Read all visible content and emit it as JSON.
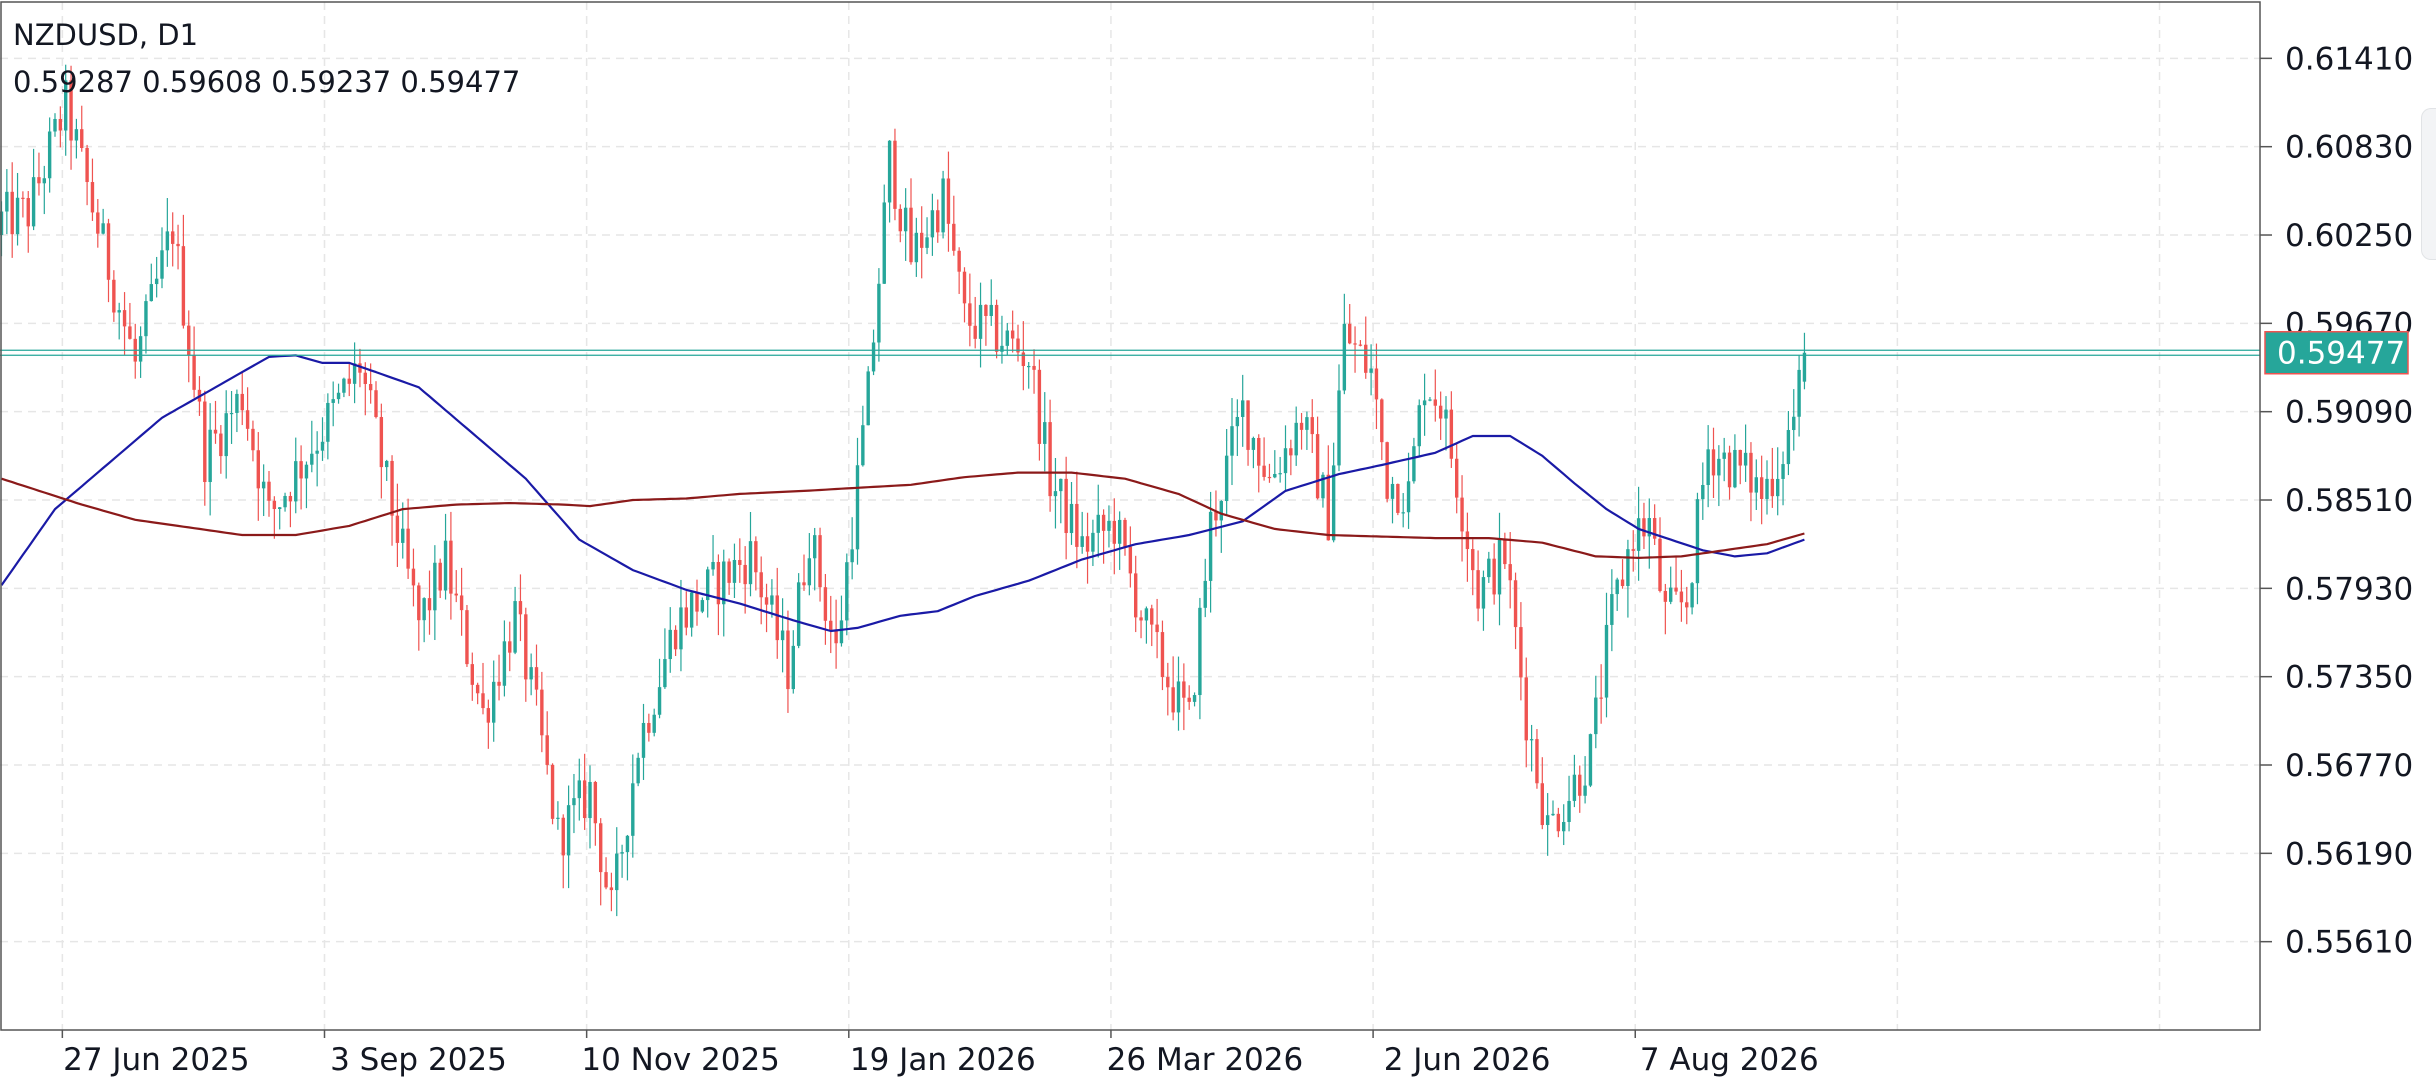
{
  "symbol_label": "NZDUSD, D1",
  "ohlc_label": "0.59287 0.59608 0.59237 0.59477",
  "colors": {
    "bull": "#26a69a",
    "bear": "#ef5350",
    "ma_fast": "#1a1aa6",
    "ma_slow": "#8b1a1a",
    "grid": "#e6e6e6",
    "price_tag": "#26a69a",
    "price_tag_border": "#ef5350",
    "text": "#131722"
  },
  "chart_data": {
    "type": "candlestick",
    "symbol": "NZDUSD",
    "timeframe": "D1",
    "y_ticks": [
      "0.61410",
      "0.60830",
      "0.60250",
      "0.59670",
      "0.59090",
      "0.58510",
      "0.57930",
      "0.57350",
      "0.56770",
      "0.56190",
      "0.55610"
    ],
    "ylim": [
      0.5503,
      0.6178
    ],
    "x_ticks": [
      {
        "label": "27 Jun 2025",
        "index": 11
      },
      {
        "label": "3 Sep 2025",
        "index": 60
      },
      {
        "label": "10 Nov 2025",
        "index": 109
      },
      {
        "label": "19 Jan 2026",
        "index": 158
      },
      {
        "label": "26 Mar 2026",
        "index": 207
      },
      {
        "label": "2 Jun 2026",
        "index": 256
      },
      {
        "label": "7 Aug 2026",
        "index": 305
      }
    ],
    "close_anchors": [
      [
        0,
        0.6035
      ],
      [
        5,
        0.604
      ],
      [
        12,
        0.611
      ],
      [
        18,
        0.603
      ],
      [
        25,
        0.594
      ],
      [
        32,
        0.603
      ],
      [
        38,
        0.588
      ],
      [
        45,
        0.592
      ],
      [
        50,
        0.584
      ],
      [
        56,
        0.5875
      ],
      [
        63,
        0.5915
      ],
      [
        67,
        0.594
      ],
      [
        72,
        0.586
      ],
      [
        78,
        0.577
      ],
      [
        83,
        0.581
      ],
      [
        90,
        0.571
      ],
      [
        96,
        0.5775
      ],
      [
        100,
        0.571
      ],
      [
        104,
        0.563
      ],
      [
        110,
        0.566
      ],
      [
        114,
        0.558
      ],
      [
        119,
        0.569
      ],
      [
        126,
        0.577
      ],
      [
        133,
        0.5795
      ],
      [
        140,
        0.5815
      ],
      [
        147,
        0.574
      ],
      [
        151,
        0.583
      ],
      [
        156,
        0.575
      ],
      [
        162,
        0.592
      ],
      [
        166,
        0.6075
      ],
      [
        170,
        0.601
      ],
      [
        176,
        0.605
      ],
      [
        180,
        0.597
      ],
      [
        186,
        0.596
      ],
      [
        192,
        0.5945
      ],
      [
        196,
        0.5865
      ],
      [
        202,
        0.582
      ],
      [
        208,
        0.5835
      ],
      [
        214,
        0.5765
      ],
      [
        219,
        0.5725
      ],
      [
        222,
        0.5705
      ],
      [
        226,
        0.5835
      ],
      [
        232,
        0.591
      ],
      [
        237,
        0.5865
      ],
      [
        243,
        0.5905
      ],
      [
        248,
        0.584
      ],
      [
        251,
        0.596
      ],
      [
        256,
        0.5935
      ],
      [
        259,
        0.5865
      ],
      [
        263,
        0.5855
      ],
      [
        266,
        0.593
      ],
      [
        269,
        0.5915
      ],
      [
        272,
        0.5865
      ],
      [
        276,
        0.579
      ],
      [
        281,
        0.5815
      ],
      [
        285,
        0.571
      ],
      [
        289,
        0.5635
      ],
      [
        294,
        0.5665
      ],
      [
        297,
        0.5685
      ],
      [
        301,
        0.5775
      ],
      [
        305,
        0.583
      ],
      [
        308,
        0.5835
      ],
      [
        311,
        0.5775
      ],
      [
        315,
        0.5785
      ],
      [
        319,
        0.5885
      ],
      [
        323,
        0.5875
      ],
      [
        327,
        0.5865
      ],
      [
        329,
        0.5855
      ],
      [
        332,
        0.5875
      ],
      [
        335,
        0.5905
      ],
      [
        337,
        0.59477
      ]
    ],
    "last_candle": {
      "open": 0.59287,
      "high": 0.59608,
      "low": 0.59237,
      "close": 0.59477
    },
    "current_price": 0.59477,
    "current_price_label": "0.59477",
    "series": [
      {
        "kind": "moving-average",
        "period": 50,
        "color": "#1a1aa6",
        "values": [
          [
            0,
            0.5795
          ],
          [
            10,
            0.5845
          ],
          [
            20,
            0.5875
          ],
          [
            30,
            0.5905
          ],
          [
            40,
            0.5925
          ],
          [
            50,
            0.5945
          ],
          [
            55,
            0.5946
          ],
          [
            60,
            0.5941
          ],
          [
            65,
            0.5941
          ],
          [
            70,
            0.5935
          ],
          [
            78,
            0.5925
          ],
          [
            88,
            0.5895
          ],
          [
            98,
            0.5865
          ],
          [
            108,
            0.5825
          ],
          [
            118,
            0.5805
          ],
          [
            128,
            0.5792
          ],
          [
            138,
            0.5783
          ],
          [
            148,
            0.5772
          ],
          [
            155,
            0.5765
          ],
          [
            160,
            0.5767
          ],
          [
            168,
            0.5775
          ],
          [
            175,
            0.5778
          ],
          [
            182,
            0.5788
          ],
          [
            192,
            0.5798
          ],
          [
            202,
            0.5812
          ],
          [
            212,
            0.5822
          ],
          [
            222,
            0.5828
          ],
          [
            232,
            0.5837
          ],
          [
            240,
            0.5857
          ],
          [
            250,
            0.5868
          ],
          [
            258,
            0.5874
          ],
          [
            268,
            0.5882
          ],
          [
            275,
            0.5893
          ],
          [
            282,
            0.5893
          ],
          [
            288,
            0.588
          ],
          [
            294,
            0.5862
          ],
          [
            300,
            0.5845
          ],
          [
            306,
            0.5832
          ],
          [
            312,
            0.5825
          ],
          [
            318,
            0.5818
          ],
          [
            324,
            0.5814
          ],
          [
            330,
            0.5816
          ],
          [
            337,
            0.5825
          ]
        ]
      },
      {
        "kind": "moving-average",
        "period": 200,
        "color": "#8b1a1a",
        "values": [
          [
            0,
            0.5865
          ],
          [
            15,
            0.5848
          ],
          [
            25,
            0.5838
          ],
          [
            35,
            0.5833
          ],
          [
            45,
            0.5828
          ],
          [
            55,
            0.5828
          ],
          [
            65,
            0.5834
          ],
          [
            75,
            0.5845
          ],
          [
            85,
            0.5848
          ],
          [
            95,
            0.5849
          ],
          [
            105,
            0.5848
          ],
          [
            110,
            0.5847
          ],
          [
            118,
            0.5851
          ],
          [
            128,
            0.5852
          ],
          [
            138,
            0.5855
          ],
          [
            150,
            0.5857
          ],
          [
            160,
            0.5859
          ],
          [
            170,
            0.5861
          ],
          [
            180,
            0.5866
          ],
          [
            190,
            0.5869
          ],
          [
            200,
            0.5869
          ],
          [
            210,
            0.5865
          ],
          [
            220,
            0.5855
          ],
          [
            228,
            0.5842
          ],
          [
            238,
            0.5832
          ],
          [
            248,
            0.5828
          ],
          [
            258,
            0.5827
          ],
          [
            268,
            0.5826
          ],
          [
            278,
            0.5826
          ],
          [
            288,
            0.5823
          ],
          [
            298,
            0.5814
          ],
          [
            306,
            0.5813
          ],
          [
            314,
            0.5814
          ],
          [
            322,
            0.5818
          ],
          [
            330,
            0.5822
          ],
          [
            337,
            0.5829
          ]
        ]
      }
    ],
    "grid": true,
    "total_candles": 338
  }
}
